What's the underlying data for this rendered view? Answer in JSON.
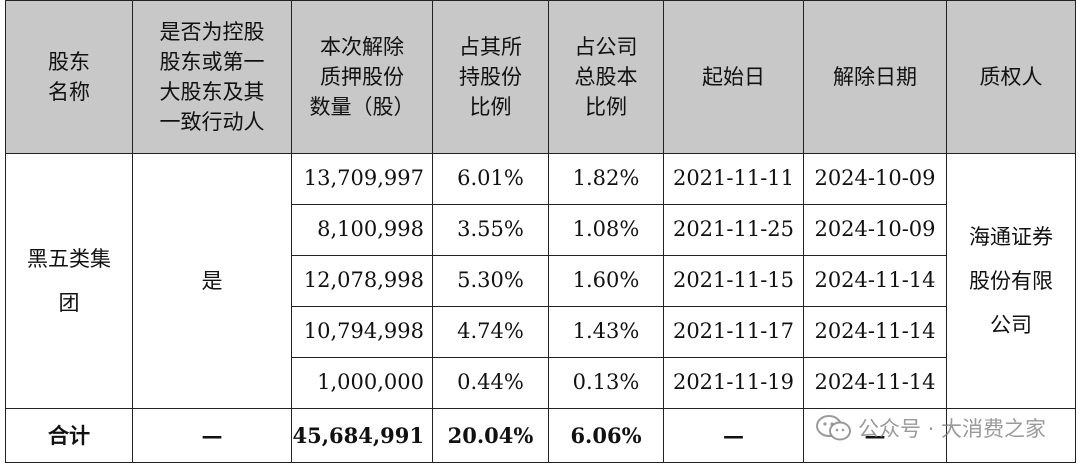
{
  "headers": [
    "股东\n名称",
    "是否为控股\n股东或第一\n大股东及其\n一致行动人",
    "本次解除\n质押股份\n数量（股）",
    "占其所\n持股份\n比例",
    "占公司\n总股本\n比例",
    "起始日",
    "解除日期",
    "质权人"
  ],
  "holder": "黑五类集\n团",
  "is_controlling": "是",
  "pledgee": "海通证券\n股份有限\n公司",
  "rows": [
    {
      "shares": "13,709,997",
      "pct_own": "6.01%",
      "pct_total": "1.82%",
      "start": "2021-11-11",
      "release": "2024-10-09"
    },
    {
      "shares": "8,100,998",
      "pct_own": "3.55%",
      "pct_total": "1.08%",
      "start": "2021-11-25",
      "release": "2024-10-09"
    },
    {
      "shares": "12,078,998",
      "pct_own": "5.30%",
      "pct_total": "1.60%",
      "start": "2021-11-15",
      "release": "2024-11-14"
    },
    {
      "shares": "10,794,998",
      "pct_own": "4.74%",
      "pct_total": "1.43%",
      "start": "2021-11-17",
      "release": "2024-11-14"
    },
    {
      "shares": "1,000,000",
      "pct_own": "0.44%",
      "pct_total": "0.13%",
      "start": "2021-11-19",
      "release": "2024-11-14"
    }
  ],
  "total": {
    "label": "合计",
    "is_controlling": "—",
    "shares": "45,684,991",
    "pct_own": "20.04%",
    "pct_total": "6.06%",
    "start": "—",
    "release": "—",
    "pledgee": ""
  },
  "watermark": {
    "text": "公众号 · 大消费之家",
    "icon": "wechat-icon"
  }
}
